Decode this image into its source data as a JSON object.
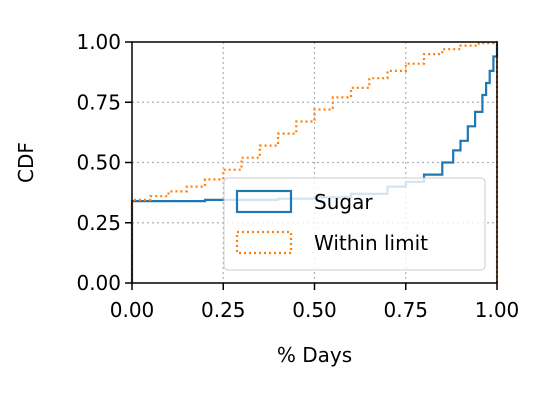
{
  "chart_data": {
    "type": "line",
    "xlabel": "% Days",
    "ylabel": "CDF",
    "xlim": [
      0,
      1
    ],
    "ylim": [
      0,
      1
    ],
    "grid": true,
    "legend_position": "lower-right",
    "x_ticks": [
      "0.00",
      "0.25",
      "0.50",
      "0.75",
      "1.00"
    ],
    "y_ticks": [
      "0.00",
      "0.25",
      "0.50",
      "0.75",
      "1.00"
    ],
    "series": [
      {
        "name": "Sugar",
        "color": "#1f77b4",
        "style": "solid-step",
        "points": [
          [
            0,
            0
          ],
          [
            0,
            0.34
          ],
          [
            0.1,
            0.34
          ],
          [
            0.2,
            0.345
          ],
          [
            0.3,
            0.345
          ],
          [
            0.4,
            0.35
          ],
          [
            0.5,
            0.355
          ],
          [
            0.6,
            0.37
          ],
          [
            0.7,
            0.4
          ],
          [
            0.75,
            0.42
          ],
          [
            0.8,
            0.45
          ],
          [
            0.85,
            0.5
          ],
          [
            0.88,
            0.55
          ],
          [
            0.9,
            0.59
          ],
          [
            0.92,
            0.65
          ],
          [
            0.94,
            0.71
          ],
          [
            0.96,
            0.78
          ],
          [
            0.97,
            0.83
          ],
          [
            0.98,
            0.88
          ],
          [
            0.99,
            0.94
          ],
          [
            1.0,
            0.98
          ],
          [
            1.0,
            1.0
          ]
        ]
      },
      {
        "name": "Within limit",
        "color": "#ff7f0e",
        "style": "dotted-step",
        "points": [
          [
            0,
            0
          ],
          [
            0,
            0.345
          ],
          [
            0.05,
            0.36
          ],
          [
            0.1,
            0.38
          ],
          [
            0.15,
            0.4
          ],
          [
            0.2,
            0.43
          ],
          [
            0.25,
            0.47
          ],
          [
            0.3,
            0.52
          ],
          [
            0.35,
            0.57
          ],
          [
            0.4,
            0.62
          ],
          [
            0.45,
            0.67
          ],
          [
            0.5,
            0.72
          ],
          [
            0.55,
            0.77
          ],
          [
            0.6,
            0.81
          ],
          [
            0.65,
            0.85
          ],
          [
            0.7,
            0.88
          ],
          [
            0.75,
            0.91
          ],
          [
            0.8,
            0.95
          ],
          [
            0.85,
            0.97
          ],
          [
            0.9,
            0.985
          ],
          [
            0.95,
            0.995
          ],
          [
            0.99,
            1.0
          ],
          [
            1.0,
            1.0
          ],
          [
            1.0,
            0
          ]
        ]
      }
    ]
  }
}
